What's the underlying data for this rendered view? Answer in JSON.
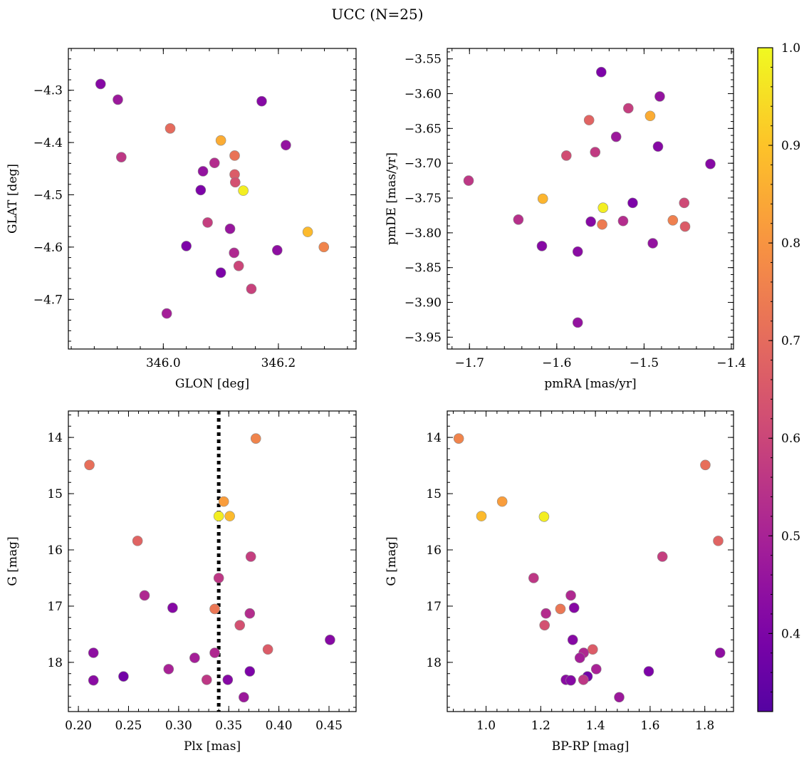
{
  "figure": {
    "title": "UCC (N=25)"
  },
  "colorbar": {
    "min": 0.32,
    "max": 1.0,
    "ticks": [
      0.4,
      0.5,
      0.6,
      0.7,
      0.8,
      0.9,
      1.0
    ],
    "tick_labels": [
      "0.4",
      "0.5",
      "0.6",
      "0.7",
      "0.8",
      "0.9",
      "1.0"
    ],
    "colormap": "plasma"
  },
  "chart_data": [
    {
      "type": "scatter",
      "id": "glon-glat",
      "xlabel": "GLON [deg]",
      "ylabel": "GLAT [deg]",
      "xlim": [
        345.835,
        346.335
      ],
      "ylim": [
        -4.795,
        -4.22
      ],
      "xticks": [
        346.0,
        346.2
      ],
      "xtick_labels": [
        "346.0",
        "346.2"
      ],
      "yticks": [
        -4.3,
        -4.4,
        -4.5,
        -4.6,
        -4.7
      ],
      "ytick_labels": [
        "−4.3",
        "−4.4",
        "−4.5",
        "−4.6",
        "−4.7"
      ],
      "points": [
        {
          "x": 345.891,
          "y": -4.288,
          "c": 0.42
        },
        {
          "x": 345.921,
          "y": -4.318,
          "c": 0.47
        },
        {
          "x": 345.927,
          "y": -4.428,
          "c": 0.56
        },
        {
          "x": 346.012,
          "y": -4.373,
          "c": 0.7
        },
        {
          "x": 346.1,
          "y": -4.396,
          "c": 0.85
        },
        {
          "x": 346.124,
          "y": -4.425,
          "c": 0.72
        },
        {
          "x": 346.124,
          "y": -4.461,
          "c": 0.66
        },
        {
          "x": 346.125,
          "y": -4.476,
          "c": 0.63
        },
        {
          "x": 346.139,
          "y": -4.492,
          "c": 0.98
        },
        {
          "x": 346.089,
          "y": -4.439,
          "c": 0.53
        },
        {
          "x": 346.069,
          "y": -4.455,
          "c": 0.45
        },
        {
          "x": 346.065,
          "y": -4.491,
          "c": 0.4
        },
        {
          "x": 346.077,
          "y": -4.553,
          "c": 0.58
        },
        {
          "x": 346.116,
          "y": -4.565,
          "c": 0.46
        },
        {
          "x": 346.171,
          "y": -4.321,
          "c": 0.42
        },
        {
          "x": 346.213,
          "y": -4.405,
          "c": 0.45
        },
        {
          "x": 346.04,
          "y": -4.598,
          "c": 0.4
        },
        {
          "x": 346.123,
          "y": -4.611,
          "c": 0.52
        },
        {
          "x": 346.131,
          "y": -4.636,
          "c": 0.6
        },
        {
          "x": 346.1,
          "y": -4.649,
          "c": 0.4
        },
        {
          "x": 346.153,
          "y": -4.68,
          "c": 0.59
        },
        {
          "x": 346.198,
          "y": -4.606,
          "c": 0.44
        },
        {
          "x": 346.006,
          "y": -4.727,
          "c": 0.49
        },
        {
          "x": 346.251,
          "y": -4.571,
          "c": 0.88
        },
        {
          "x": 346.279,
          "y": -4.6,
          "c": 0.76
        }
      ]
    },
    {
      "type": "scatter",
      "id": "pmra-pmde",
      "xlabel": "pmRA [mas/yr]",
      "ylabel": "pmDE [mas/yr]",
      "xlim": [
        -1.7255,
        -1.3975
      ],
      "ylim": [
        -3.967,
        -3.535
      ],
      "xticks": [
        -1.7,
        -1.6,
        -1.5,
        -1.4
      ],
      "xtick_labels": [
        "−1.7",
        "−1.6",
        "−1.5",
        "−1.4"
      ],
      "yticks": [
        -3.55,
        -3.6,
        -3.65,
        -3.7,
        -3.75,
        -3.8,
        -3.85,
        -3.9,
        -3.95
      ],
      "ytick_labels": [
        "−3.55",
        "−3.60",
        "−3.65",
        "−3.70",
        "−3.75",
        "−3.80",
        "−3.85",
        "−3.90",
        "−3.95"
      ],
      "points": [
        {
          "x": -1.549,
          "y": -3.569,
          "c": 0.4
        },
        {
          "x": -1.482,
          "y": -3.604,
          "c": 0.45
        },
        {
          "x": -1.518,
          "y": -3.621,
          "c": 0.58
        },
        {
          "x": -1.493,
          "y": -3.632,
          "c": 0.85
        },
        {
          "x": -1.563,
          "y": -3.638,
          "c": 0.68
        },
        {
          "x": -1.532,
          "y": -3.662,
          "c": 0.47
        },
        {
          "x": -1.484,
          "y": -3.676,
          "c": 0.42
        },
        {
          "x": -1.556,
          "y": -3.684,
          "c": 0.57
        },
        {
          "x": -1.589,
          "y": -3.689,
          "c": 0.62
        },
        {
          "x": -1.424,
          "y": -3.701,
          "c": 0.42
        },
        {
          "x": -1.701,
          "y": -3.725,
          "c": 0.56
        },
        {
          "x": -1.616,
          "y": -3.751,
          "c": 0.87
        },
        {
          "x": -1.547,
          "y": -3.764,
          "c": 0.98
        },
        {
          "x": -1.513,
          "y": -3.757,
          "c": 0.4
        },
        {
          "x": -1.454,
          "y": -3.757,
          "c": 0.61
        },
        {
          "x": -1.644,
          "y": -3.781,
          "c": 0.54
        },
        {
          "x": -1.561,
          "y": -3.784,
          "c": 0.42
        },
        {
          "x": -1.548,
          "y": -3.788,
          "c": 0.74
        },
        {
          "x": -1.524,
          "y": -3.783,
          "c": 0.53
        },
        {
          "x": -1.467,
          "y": -3.782,
          "c": 0.75
        },
        {
          "x": -1.453,
          "y": -3.791,
          "c": 0.66
        },
        {
          "x": -1.617,
          "y": -3.819,
          "c": 0.42
        },
        {
          "x": -1.576,
          "y": -3.827,
          "c": 0.43
        },
        {
          "x": -1.49,
          "y": -3.815,
          "c": 0.45
        },
        {
          "x": -1.576,
          "y": -3.929,
          "c": 0.45
        }
      ]
    },
    {
      "type": "scatter",
      "id": "plx-g",
      "xlabel": "Plx [mas]",
      "ylabel": "G [mag]",
      "xlim": [
        0.19,
        0.477
      ],
      "ylim": [
        18.875,
        13.53
      ],
      "xticks": [
        0.2,
        0.25,
        0.3,
        0.35,
        0.4,
        0.45
      ],
      "xtick_labels": [
        "0.20",
        "0.25",
        "0.30",
        "0.35",
        "0.40",
        "0.45"
      ],
      "yticks": [
        14,
        15,
        16,
        17,
        18
      ],
      "ytick_labels": [
        "14",
        "15",
        "16",
        "17",
        "18"
      ],
      "vline": 0.34,
      "points": [
        {
          "x": 0.377,
          "y": 14.02,
          "c": 0.76
        },
        {
          "x": 0.211,
          "y": 14.49,
          "c": 0.71
        },
        {
          "x": 0.345,
          "y": 15.14,
          "c": 0.82
        },
        {
          "x": 0.34,
          "y": 15.4,
          "c": 0.98
        },
        {
          "x": 0.351,
          "y": 15.4,
          "c": 0.88
        },
        {
          "x": 0.259,
          "y": 15.84,
          "c": 0.68
        },
        {
          "x": 0.372,
          "y": 16.12,
          "c": 0.58
        },
        {
          "x": 0.34,
          "y": 16.5,
          "c": 0.56
        },
        {
          "x": 0.266,
          "y": 16.81,
          "c": 0.52
        },
        {
          "x": 0.294,
          "y": 17.03,
          "c": 0.42
        },
        {
          "x": 0.336,
          "y": 17.05,
          "c": 0.73
        },
        {
          "x": 0.371,
          "y": 17.13,
          "c": 0.53
        },
        {
          "x": 0.361,
          "y": 17.34,
          "c": 0.63
        },
        {
          "x": 0.451,
          "y": 17.6,
          "c": 0.42
        },
        {
          "x": 0.389,
          "y": 17.77,
          "c": 0.66
        },
        {
          "x": 0.215,
          "y": 17.83,
          "c": 0.44
        },
        {
          "x": 0.336,
          "y": 17.83,
          "c": 0.52
        },
        {
          "x": 0.316,
          "y": 17.92,
          "c": 0.49
        },
        {
          "x": 0.29,
          "y": 18.12,
          "c": 0.5
        },
        {
          "x": 0.371,
          "y": 18.16,
          "c": 0.4
        },
        {
          "x": 0.245,
          "y": 18.25,
          "c": 0.38
        },
        {
          "x": 0.215,
          "y": 18.32,
          "c": 0.43
        },
        {
          "x": 0.328,
          "y": 18.31,
          "c": 0.56
        },
        {
          "x": 0.349,
          "y": 18.31,
          "c": 0.42
        },
        {
          "x": 0.365,
          "y": 18.62,
          "c": 0.47
        }
      ]
    },
    {
      "type": "scatter",
      "id": "bprp-g",
      "xlabel": "BP-RP [mag]",
      "ylabel": "G [mag]",
      "xlim": [
        0.858,
        1.905
      ],
      "ylim": [
        18.875,
        13.53
      ],
      "xticks": [
        1.0,
        1.2,
        1.4,
        1.6,
        1.8
      ],
      "xtick_labels": [
        "1.0",
        "1.2",
        "1.4",
        "1.6",
        "1.8"
      ],
      "yticks": [
        14,
        15,
        16,
        17,
        18
      ],
      "ytick_labels": [
        "14",
        "15",
        "16",
        "17",
        "18"
      ],
      "points": [
        {
          "x": 0.9,
          "y": 14.02,
          "c": 0.76
        },
        {
          "x": 1.802,
          "y": 14.49,
          "c": 0.71
        },
        {
          "x": 1.059,
          "y": 15.14,
          "c": 0.82
        },
        {
          "x": 0.983,
          "y": 15.4,
          "c": 0.88
        },
        {
          "x": 1.212,
          "y": 15.41,
          "c": 0.98
        },
        {
          "x": 1.849,
          "y": 15.84,
          "c": 0.68
        },
        {
          "x": 1.645,
          "y": 16.12,
          "c": 0.58
        },
        {
          "x": 1.174,
          "y": 16.5,
          "c": 0.56
        },
        {
          "x": 1.31,
          "y": 16.81,
          "c": 0.52
        },
        {
          "x": 1.322,
          "y": 17.03,
          "c": 0.42
        },
        {
          "x": 1.272,
          "y": 17.05,
          "c": 0.73
        },
        {
          "x": 1.219,
          "y": 17.13,
          "c": 0.53
        },
        {
          "x": 1.214,
          "y": 17.34,
          "c": 0.63
        },
        {
          "x": 1.317,
          "y": 17.6,
          "c": 0.42
        },
        {
          "x": 1.39,
          "y": 17.77,
          "c": 0.66
        },
        {
          "x": 1.357,
          "y": 17.83,
          "c": 0.52
        },
        {
          "x": 1.856,
          "y": 17.83,
          "c": 0.44
        },
        {
          "x": 1.343,
          "y": 17.92,
          "c": 0.49
        },
        {
          "x": 1.403,
          "y": 18.12,
          "c": 0.5
        },
        {
          "x": 1.595,
          "y": 18.16,
          "c": 0.4
        },
        {
          "x": 1.371,
          "y": 18.25,
          "c": 0.38
        },
        {
          "x": 1.292,
          "y": 18.31,
          "c": 0.43
        },
        {
          "x": 1.356,
          "y": 18.31,
          "c": 0.56
        },
        {
          "x": 1.31,
          "y": 18.32,
          "c": 0.42
        },
        {
          "x": 1.487,
          "y": 18.62,
          "c": 0.47
        }
      ]
    }
  ]
}
